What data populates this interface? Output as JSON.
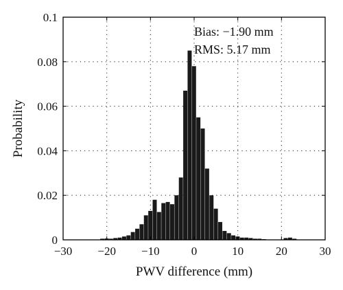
{
  "chart_data": {
    "type": "bar",
    "title": "",
    "xlabel": "PWV difference (mm)",
    "ylabel": "Probability",
    "xlim": [
      -30,
      30
    ],
    "ylim": [
      0,
      0.1
    ],
    "grid": true,
    "x_ticks": [
      "−30",
      "−20",
      "−10",
      "0",
      "10",
      "20",
      "30"
    ],
    "y_ticks": [
      "0",
      "0.02",
      "0.04",
      "0.06",
      "0.08",
      "0.1"
    ],
    "bin_width": 1,
    "annotations": [
      "Bias: −1.90 mm",
      "RMS: 5.17 mm"
    ],
    "color": "#1a1a1a",
    "bins": [
      {
        "x": -21,
        "value": 0.0005
      },
      {
        "x": -20,
        "value": 0.0006
      },
      {
        "x": -19,
        "value": 0.0005
      },
      {
        "x": -18,
        "value": 0.0008
      },
      {
        "x": -17,
        "value": 0.001
      },
      {
        "x": -16,
        "value": 0.0015
      },
      {
        "x": -15,
        "value": 0.002
      },
      {
        "x": -14,
        "value": 0.0035
      },
      {
        "x": -13,
        "value": 0.005
      },
      {
        "x": -12,
        "value": 0.007
      },
      {
        "x": -11,
        "value": 0.011
      },
      {
        "x": -10,
        "value": 0.013
      },
      {
        "x": -9,
        "value": 0.018
      },
      {
        "x": -8,
        "value": 0.0125
      },
      {
        "x": -7,
        "value": 0.0165
      },
      {
        "x": -6,
        "value": 0.017
      },
      {
        "x": -5,
        "value": 0.016
      },
      {
        "x": -4,
        "value": 0.02
      },
      {
        "x": -3,
        "value": 0.028
      },
      {
        "x": -2,
        "value": 0.067
      },
      {
        "x": -1,
        "value": 0.085
      },
      {
        "x": 0,
        "value": 0.078
      },
      {
        "x": 1,
        "value": 0.055
      },
      {
        "x": 2,
        "value": 0.05
      },
      {
        "x": 3,
        "value": 0.032
      },
      {
        "x": 4,
        "value": 0.02
      },
      {
        "x": 5,
        "value": 0.014
      },
      {
        "x": 6,
        "value": 0.008
      },
      {
        "x": 7,
        "value": 0.004
      },
      {
        "x": 8,
        "value": 0.003
      },
      {
        "x": 9,
        "value": 0.002
      },
      {
        "x": 10,
        "value": 0.0015
      },
      {
        "x": 11,
        "value": 0.001
      },
      {
        "x": 12,
        "value": 0.001
      },
      {
        "x": 13,
        "value": 0.0008
      },
      {
        "x": 14,
        "value": 0.0005
      },
      {
        "x": 15,
        "value": 0.0005
      },
      {
        "x": 16,
        "value": 0.0003
      },
      {
        "x": 21,
        "value": 0.0008
      },
      {
        "x": 22,
        "value": 0.001
      },
      {
        "x": 23,
        "value": 0.0005
      }
    ]
  }
}
